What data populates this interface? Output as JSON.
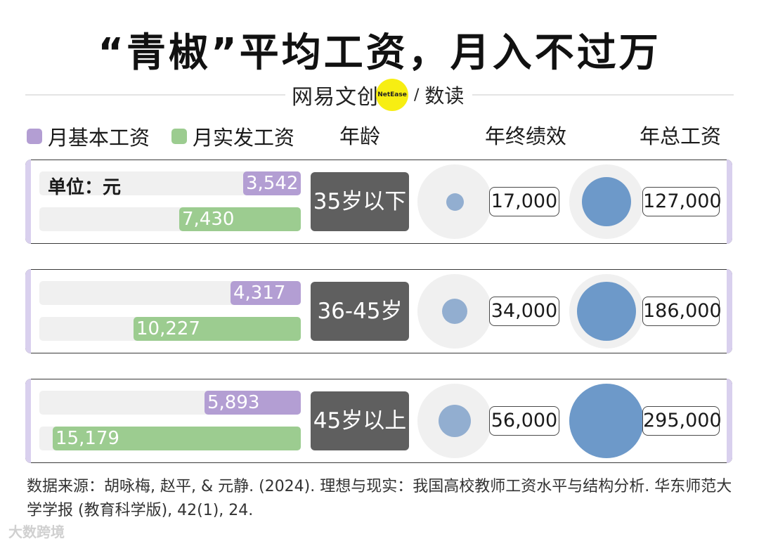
{
  "title": "“青椒”平均工资，月入不过万",
  "brand": {
    "name": "网易文创",
    "badge": "NetEase",
    "sub": "数读"
  },
  "legend": {
    "basic": "月基本工资",
    "actual": "月实发工资"
  },
  "columns": {
    "age": "年龄",
    "bonus": "年终绩效",
    "total": "年总工资"
  },
  "unit_label": "单位：元",
  "colors": {
    "basic": "#b39ed3",
    "actual": "#9ccc90",
    "bonus": "#92aed0",
    "total": "#6d99c9",
    "age_box": "#5f5f5f"
  },
  "chart_data": {
    "type": "bar",
    "categories": [
      "35岁以下",
      "36-45岁",
      "45岁以上"
    ],
    "series": [
      {
        "name": "月基本工资",
        "values": [
          3542,
          4317,
          5893
        ],
        "labels": [
          "3,542",
          "4,317",
          "5,893"
        ]
      },
      {
        "name": "月实发工资",
        "values": [
          7430,
          10227,
          15179
        ],
        "labels": [
          "7,430",
          "10,227",
          "15,179"
        ]
      },
      {
        "name": "年终绩效",
        "values": [
          17000,
          34000,
          56000
        ],
        "labels": [
          "17,000",
          "34,000",
          "56,000"
        ]
      },
      {
        "name": "年总工资",
        "values": [
          127000,
          186000,
          295000
        ],
        "labels": [
          "127,000",
          "186,000",
          "295,000"
        ]
      }
    ]
  },
  "source": "数据来源：胡咏梅, 赵平, & 元静. (2024). 理想与现实：我国高校教师工资水平与结构分析. 华东师范大学学报 (教育科学版), 42(1), 24.",
  "watermark": "大数跨境"
}
